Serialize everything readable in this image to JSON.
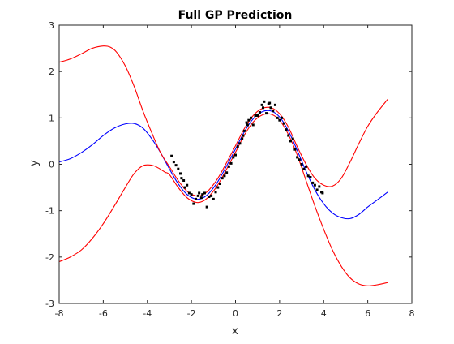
{
  "chart_data": {
    "type": "line",
    "title": "Full GP Prediction",
    "xlabel": "x",
    "ylabel": "y",
    "xlim": [
      -8,
      8
    ],
    "ylim": [
      -3,
      3
    ],
    "xticks": [
      -8,
      -6,
      -4,
      -2,
      0,
      2,
      4,
      6,
      8
    ],
    "yticks": [
      -3,
      -2,
      -1,
      0,
      1,
      2,
      3
    ],
    "grid": false,
    "colors": {
      "mean": "#0000ff",
      "bounds": "#ff0000",
      "data": "#000000",
      "axes": "#262626"
    },
    "series": [
      {
        "role": "mean",
        "color": "#0000ff",
        "x": [
          -8,
          -7.5,
          -7,
          -6.5,
          -6,
          -5.5,
          -5,
          -4.6,
          -4.2,
          -3.8,
          -3.4,
          -3,
          -2.6,
          -2.2,
          -1.8,
          -1.5,
          -1.2,
          -0.8,
          -0.4,
          0,
          0.4,
          0.8,
          1.2,
          1.6,
          2,
          2.4,
          2.8,
          3.2,
          3.6,
          4,
          4.4,
          4.8,
          5.2,
          5.6,
          6,
          6.4,
          6.9
        ],
        "y": [
          0.05,
          0.12,
          0.25,
          0.42,
          0.62,
          0.78,
          0.87,
          0.88,
          0.78,
          0.55,
          0.25,
          -0.1,
          -0.42,
          -0.65,
          -0.75,
          -0.73,
          -0.62,
          -0.37,
          -0.03,
          0.33,
          0.7,
          0.98,
          1.13,
          1.15,
          1.02,
          0.72,
          0.3,
          -0.15,
          -0.55,
          -0.85,
          -1.05,
          -1.15,
          -1.17,
          -1.08,
          -0.92,
          -0.78,
          -0.6
        ]
      },
      {
        "role": "upper-bound",
        "color": "#ff0000",
        "x": [
          -8,
          -7.5,
          -7,
          -6.5,
          -6,
          -5.7,
          -5.4,
          -5,
          -4.6,
          -4.2,
          -3.8,
          -3.4,
          -3,
          -2.6,
          -2.2,
          -1.8,
          -1.5,
          -1.2,
          -0.8,
          -0.4,
          0,
          0.4,
          0.8,
          1.2,
          1.6,
          2,
          2.4,
          2.8,
          3.2,
          3.6,
          4,
          4.4,
          4.8,
          5.2,
          5.6,
          6,
          6.4,
          6.9
        ],
        "y": [
          2.2,
          2.27,
          2.38,
          2.5,
          2.55,
          2.53,
          2.42,
          2.12,
          1.68,
          1.15,
          0.68,
          0.25,
          -0.05,
          -0.35,
          -0.58,
          -0.68,
          -0.66,
          -0.55,
          -0.3,
          0.04,
          0.4,
          0.77,
          1.05,
          1.2,
          1.22,
          1.09,
          0.8,
          0.38,
          0,
          -0.3,
          -0.45,
          -0.47,
          -0.3,
          0.05,
          0.45,
          0.82,
          1.1,
          1.4
        ]
      },
      {
        "role": "lower-bound",
        "color": "#ff0000",
        "x": [
          -8,
          -7.5,
          -7,
          -6.5,
          -6,
          -5.5,
          -5,
          -4.6,
          -4.2,
          -3.8,
          -3.5,
          -3.2,
          -3,
          -2.6,
          -2.2,
          -1.8,
          -1.5,
          -1.2,
          -0.8,
          -0.4,
          0,
          0.4,
          0.8,
          1.2,
          1.6,
          2,
          2.4,
          2.8,
          3.2,
          3.6,
          4,
          4.4,
          4.8,
          5.2,
          5.6,
          6,
          6.4,
          6.9
        ],
        "y": [
          -2.1,
          -2.0,
          -1.85,
          -1.6,
          -1.28,
          -0.9,
          -0.5,
          -0.2,
          -0.03,
          -0.02,
          -0.08,
          -0.17,
          -0.22,
          -0.5,
          -0.72,
          -0.82,
          -0.8,
          -0.69,
          -0.44,
          -0.1,
          0.26,
          0.63,
          0.91,
          1.06,
          1.08,
          0.95,
          0.64,
          0.2,
          -0.35,
          -0.9,
          -1.4,
          -1.85,
          -2.2,
          -2.45,
          -2.58,
          -2.62,
          -2.6,
          -2.55
        ]
      }
    ],
    "points": [
      [
        -2.9,
        0.18
      ],
      [
        -2.8,
        0.05
      ],
      [
        -2.7,
        -0.02
      ],
      [
        -2.6,
        -0.1
      ],
      [
        -2.5,
        -0.2
      ],
      [
        -2.45,
        -0.3
      ],
      [
        -2.35,
        -0.35
      ],
      [
        -2.3,
        -0.5
      ],
      [
        -2.2,
        -0.45
      ],
      [
        -2.1,
        -0.62
      ],
      [
        -2.0,
        -0.65
      ],
      [
        -1.9,
        -0.85
      ],
      [
        -1.8,
        -0.75
      ],
      [
        -1.7,
        -0.68
      ],
      [
        -1.65,
        -0.62
      ],
      [
        -1.55,
        -0.72
      ],
      [
        -1.5,
        -0.65
      ],
      [
        -1.4,
        -0.62
      ],
      [
        -1.3,
        -0.92
      ],
      [
        -1.2,
        -0.7
      ],
      [
        -1.1,
        -0.68
      ],
      [
        -1.0,
        -0.75
      ],
      [
        -0.9,
        -0.6
      ],
      [
        -0.8,
        -0.5
      ],
      [
        -0.7,
        -0.42
      ],
      [
        -0.6,
        -0.3
      ],
      [
        -0.5,
        -0.25
      ],
      [
        -0.4,
        -0.18
      ],
      [
        -0.3,
        -0.05
      ],
      [
        -0.2,
        0.02
      ],
      [
        -0.1,
        0.15
      ],
      [
        0.0,
        0.2
      ],
      [
        0.1,
        0.38
      ],
      [
        0.2,
        0.45
      ],
      [
        0.3,
        0.55
      ],
      [
        0.35,
        0.62
      ],
      [
        0.4,
        0.72
      ],
      [
        0.5,
        0.9
      ],
      [
        0.55,
        0.85
      ],
      [
        0.6,
        0.95
      ],
      [
        0.7,
        1.0
      ],
      [
        0.8,
        0.85
      ],
      [
        0.9,
        1.05
      ],
      [
        1.0,
        1.05
      ],
      [
        1.1,
        1.12
      ],
      [
        1.2,
        1.28
      ],
      [
        1.25,
        1.22
      ],
      [
        1.3,
        1.35
      ],
      [
        1.4,
        1.1
      ],
      [
        1.5,
        1.3
      ],
      [
        1.55,
        1.32
      ],
      [
        1.6,
        1.22
      ],
      [
        1.7,
        1.15
      ],
      [
        1.8,
        1.28
      ],
      [
        1.9,
        1.0
      ],
      [
        2.0,
        0.95
      ],
      [
        2.1,
        1.0
      ],
      [
        2.2,
        0.88
      ],
      [
        2.3,
        0.75
      ],
      [
        2.4,
        0.62
      ],
      [
        2.5,
        0.5
      ],
      [
        2.6,
        0.55
      ],
      [
        2.7,
        0.32
      ],
      [
        2.8,
        0.15
      ],
      [
        2.9,
        0.1
      ],
      [
        3.0,
        0.0
      ],
      [
        3.1,
        -0.1
      ],
      [
        3.2,
        -0.05
      ],
      [
        3.3,
        -0.25
      ],
      [
        3.4,
        -0.28
      ],
      [
        3.5,
        -0.4
      ],
      [
        3.6,
        -0.45
      ],
      [
        3.7,
        -0.55
      ],
      [
        3.8,
        -0.48
      ],
      [
        3.9,
        -0.6
      ],
      [
        3.95,
        -0.62
      ]
    ]
  }
}
